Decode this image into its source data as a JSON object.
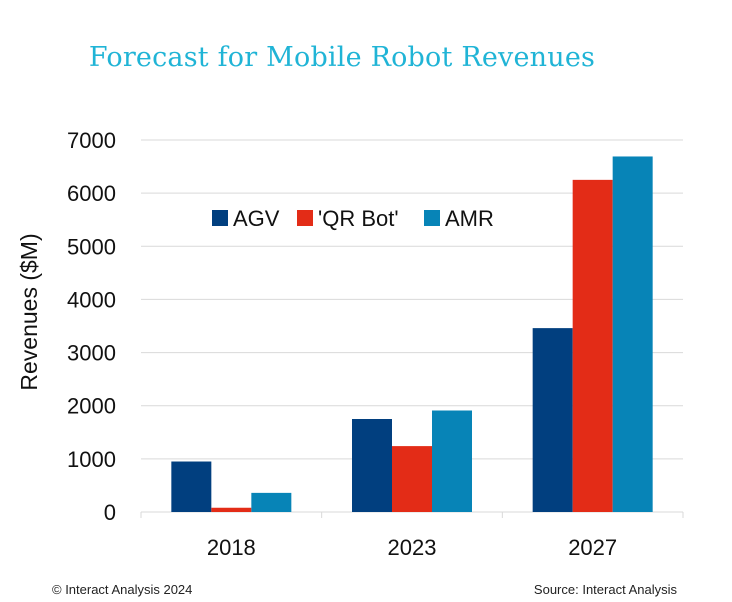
{
  "chart_data": {
    "type": "bar",
    "title": "Forecast for Mobile Robot Revenues",
    "xlabel": "",
    "ylabel": "Revenues ($M)",
    "categories": [
      "2018",
      "2023",
      "2027"
    ],
    "series": [
      {
        "name": "AGV",
        "color": "#013f7f",
        "values": [
          950,
          1750,
          3460
        ]
      },
      {
        "name": "'QR Bot'",
        "color": "#e32c17",
        "values": [
          80,
          1240,
          6250
        ]
      },
      {
        "name": "AMR",
        "color": "#0784b7",
        "values": [
          360,
          1910,
          6690
        ]
      }
    ],
    "ylim": [
      0,
      7000
    ],
    "yticks": [
      0,
      1000,
      2000,
      3000,
      4000,
      5000,
      6000,
      7000
    ],
    "grid": true,
    "legend_position": "top-left inside plot"
  },
  "footer": {
    "copyright": "© Interact Analysis 2024",
    "source": "Source: Interact Analysis"
  }
}
